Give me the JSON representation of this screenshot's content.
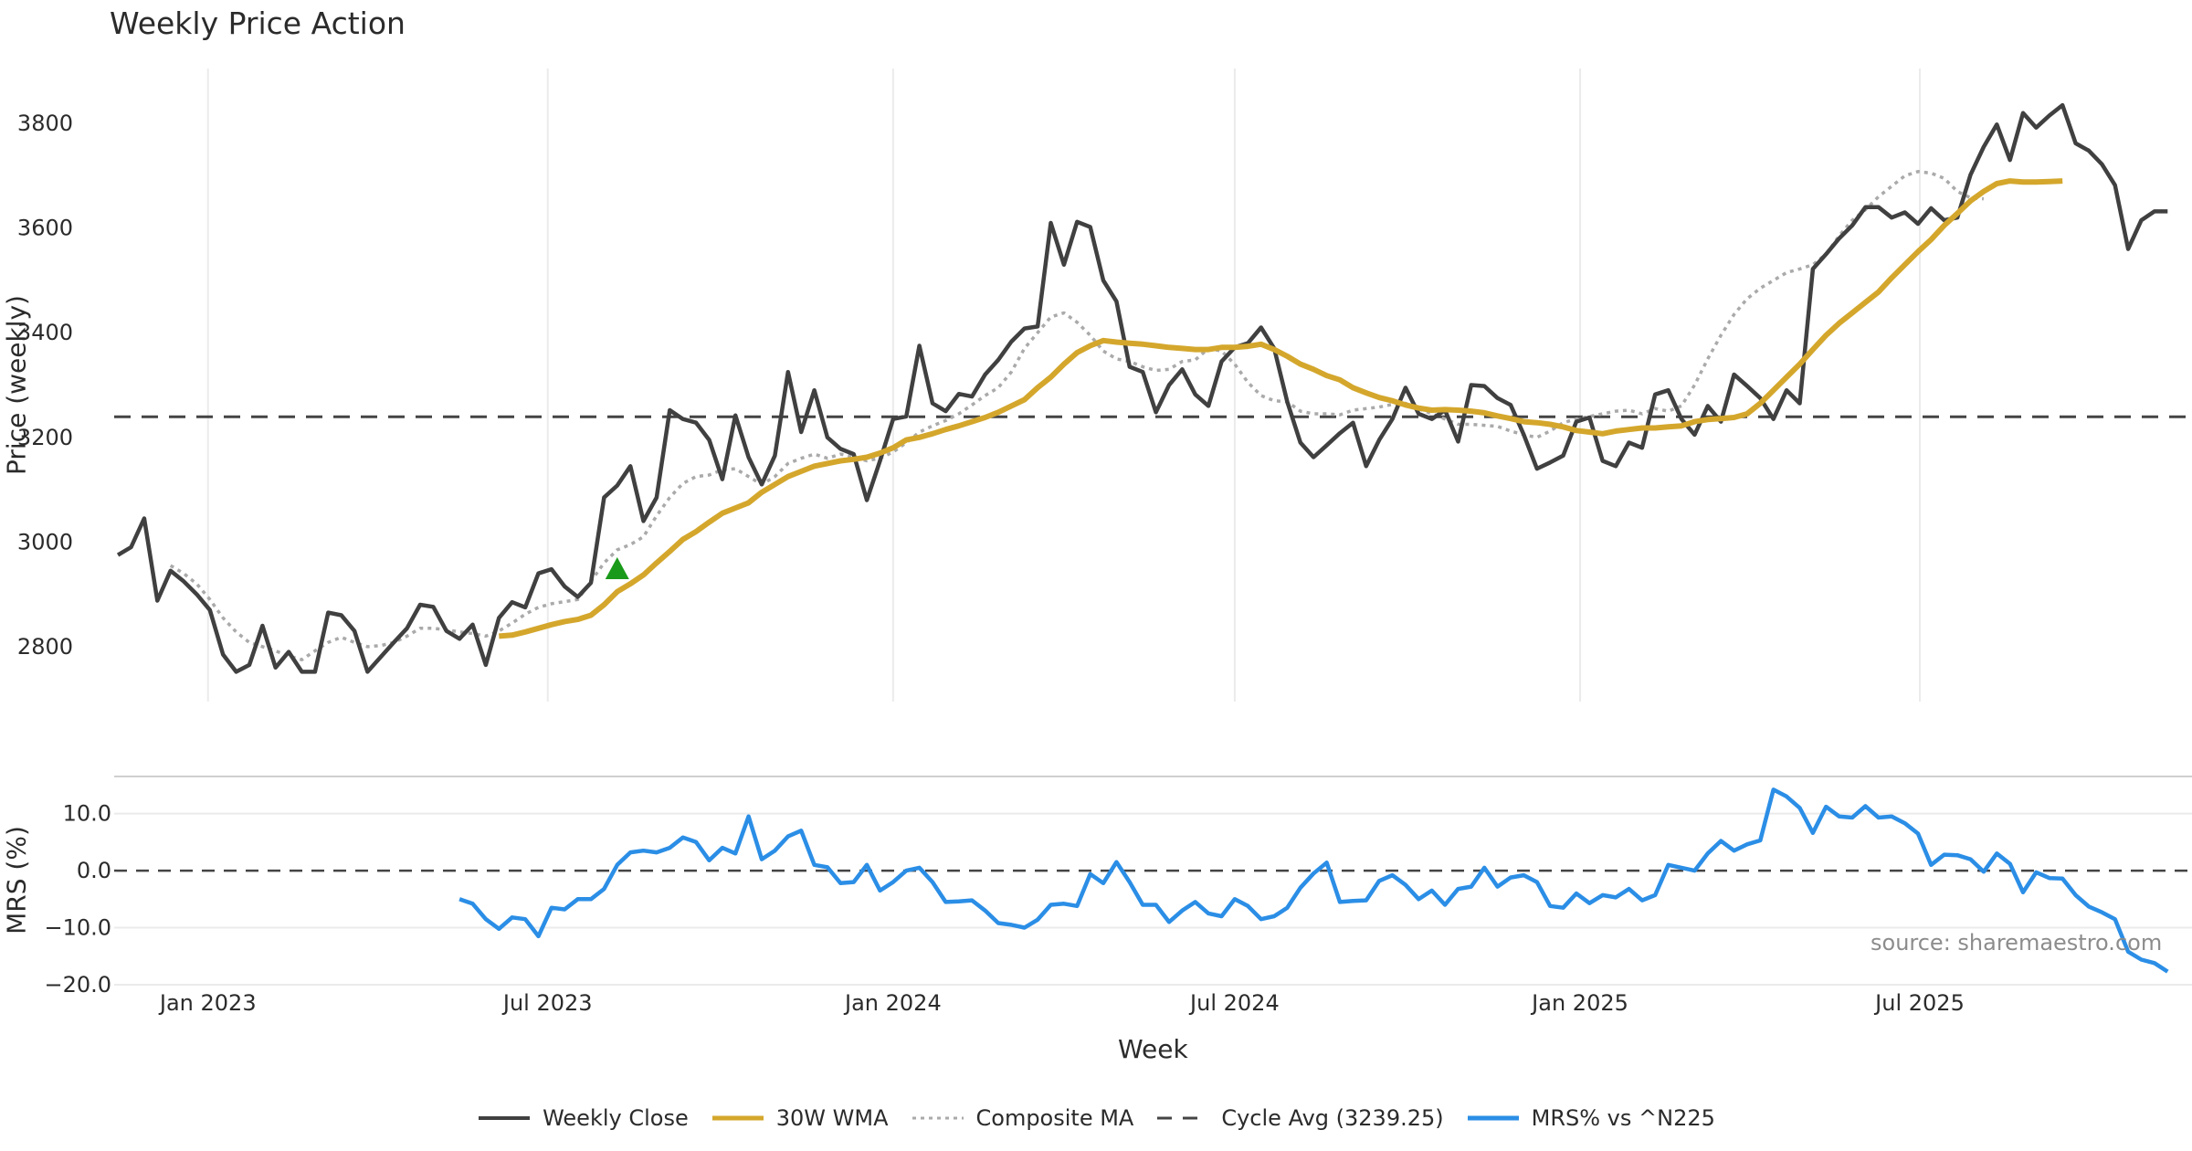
{
  "title": "Weekly Price Action",
  "source": "source: sharemaestro.com",
  "colors": {
    "close": "#404040",
    "wma": "#d4a72c",
    "composite": "#aaaaaa",
    "cycle": "#444444",
    "mrs": "#2b8ee6",
    "buy": "#1a9a1a",
    "grid": "#ebebeb"
  },
  "chart_data": [
    {
      "type": "line",
      "title": "Weekly Price Action",
      "xlabel": "",
      "ylabel": "Price (weekly)",
      "x_start": "2022-11-14",
      "x_step_days": 7,
      "xlim": [
        "2022-11-12",
        "2025-11-23"
      ],
      "ylim": [
        2695,
        3905
      ],
      "yticks": [
        2800,
        3000,
        3200,
        3400,
        3600,
        3800
      ],
      "xticks": [
        {
          "date": "2023-01-01",
          "label": "Jan 2023"
        },
        {
          "date": "2023-07-01",
          "label": "Jul 2023"
        },
        {
          "date": "2024-01-01",
          "label": "Jan 2024"
        },
        {
          "date": "2024-07-01",
          "label": "Jul 2024"
        },
        {
          "date": "2025-01-01",
          "label": "Jan 2025"
        },
        {
          "date": "2025-07-01",
          "label": "Jul 2025"
        }
      ],
      "cycle_avg": 3239.25,
      "buy_signal": {
        "index": 38,
        "value": 2950
      },
      "series": [
        {
          "name": "Weekly Close",
          "values": [
            2975,
            2990,
            3045,
            2888,
            2945,
            2925,
            2900,
            2870,
            2785,
            2752,
            2765,
            2840,
            2760,
            2790,
            2752,
            2752,
            2865,
            2860,
            2830,
            2752,
            2780,
            2808,
            2835,
            2880,
            2876,
            2830,
            2815,
            2842,
            2765,
            2855,
            2885,
            2875,
            2940,
            2948,
            2915,
            2895,
            2922,
            3085,
            3108,
            3145,
            3040,
            3085,
            3252,
            3235,
            3228,
            3195,
            3120,
            3242,
            3162,
            3110,
            3165,
            3325,
            3210,
            3290,
            3200,
            3178,
            3168,
            3080,
            3155,
            3235,
            3240,
            3375,
            3265,
            3250,
            3283,
            3278,
            3320,
            3348,
            3383,
            3408,
            3412,
            3610,
            3530,
            3612,
            3602,
            3500,
            3460,
            3335,
            3325,
            3248,
            3300,
            3330,
            3282,
            3260,
            3345,
            3372,
            3380,
            3410,
            3370,
            3268,
            3190,
            3162,
            3185,
            3208,
            3228,
            3145,
            3195,
            3235,
            3295,
            3245,
            3235,
            3252,
            3192,
            3300,
            3298,
            3275,
            3262,
            3205,
            3140,
            3152,
            3165,
            3230,
            3238,
            3155,
            3145,
            3190,
            3180,
            3282,
            3290,
            3235,
            3205,
            3260,
            3230,
            3320,
            3298,
            3275,
            3235,
            3290,
            3265,
            3522,
            3550,
            3580,
            3605,
            3640,
            3640,
            3620,
            3630,
            3608,
            3638,
            3615,
            3620,
            3702,
            3755,
            3798,
            3730,
            3820,
            3792,
            3815,
            3835,
            3762,
            3748,
            3722,
            3682,
            3560,
            3615,
            3632,
            3632
          ]
        },
        {
          "name": "30W WMA",
          "start_index": 29,
          "values": [
            2820,
            2822,
            2828,
            2835,
            2842,
            2848,
            2852,
            2860,
            2880,
            2905,
            2920,
            2937,
            2960,
            2982,
            3005,
            3020,
            3038,
            3055,
            3065,
            3075,
            3095,
            3110,
            3125,
            3135,
            3145,
            3150,
            3155,
            3158,
            3162,
            3170,
            3180,
            3195,
            3200,
            3207,
            3215,
            3222,
            3230,
            3238,
            3248,
            3260,
            3272,
            3295,
            3315,
            3340,
            3362,
            3375,
            3385,
            3382,
            3380,
            3378,
            3375,
            3372,
            3370,
            3368,
            3368,
            3372,
            3372,
            3374,
            3378,
            3368,
            3355,
            3340,
            3330,
            3318,
            3310,
            3295,
            3285,
            3276,
            3270,
            3262,
            3256,
            3252,
            3253,
            3252,
            3250,
            3247,
            3241,
            3236,
            3230,
            3228,
            3225,
            3220,
            3213,
            3210,
            3207,
            3212,
            3215,
            3218,
            3218,
            3220,
            3222,
            3230,
            3234,
            3236,
            3238,
            3245,
            3265,
            3290,
            3315,
            3340,
            3368,
            3395,
            3418,
            3438,
            3458,
            3478,
            3505,
            3530,
            3555,
            3578,
            3605,
            3628,
            3652,
            3670,
            3685,
            3690,
            3688,
            3688,
            3689,
            3690
          ]
        },
        {
          "name": "Composite MA",
          "start_index": 4,
          "values": [
            2955,
            2940,
            2920,
            2890,
            2855,
            2828,
            2808,
            2800,
            2792,
            2782,
            2775,
            2792,
            2808,
            2818,
            2808,
            2800,
            2802,
            2808,
            2820,
            2835,
            2835,
            2832,
            2828,
            2825,
            2820,
            2830,
            2845,
            2862,
            2875,
            2882,
            2886,
            2890,
            2925,
            2960,
            2985,
            2995,
            3010,
            3050,
            3085,
            3112,
            3125,
            3128,
            3138,
            3140,
            3125,
            3110,
            3125,
            3150,
            3160,
            3168,
            3160,
            3168,
            3163,
            3155,
            3160,
            3172,
            3190,
            3210,
            3222,
            3232,
            3245,
            3262,
            3280,
            3295,
            3325,
            3370,
            3400,
            3430,
            3438,
            3420,
            3395,
            3365,
            3350,
            3345,
            3335,
            3328,
            3330,
            3345,
            3348,
            3370,
            3365,
            3340,
            3305,
            3280,
            3270,
            3268,
            3250,
            3245,
            3245,
            3243,
            3252,
            3255,
            3258,
            3263,
            3265,
            3255,
            3245,
            3235,
            3225,
            3225,
            3223,
            3221,
            3212,
            3205,
            3200,
            3212,
            3228,
            3235,
            3240,
            3245,
            3250,
            3252,
            3245,
            3255,
            3250,
            3260,
            3300,
            3350,
            3395,
            3435,
            3465,
            3485,
            3500,
            3515,
            3522,
            3530,
            3550,
            3585,
            3615,
            3635,
            3660,
            3680,
            3700,
            3708,
            3705,
            3695,
            3670,
            3658,
            3656
          ]
        },
        {
          "name": "Cycle Avg (3239.25)",
          "constant": 3239.25
        }
      ]
    },
    {
      "type": "line",
      "title": "",
      "xlabel": "Week",
      "ylabel": "MRS (%)",
      "ylim": [
        -20,
        16.5
      ],
      "yticks": [
        -20,
        -10,
        0,
        10
      ],
      "ytick_labels": [
        "−20.0",
        "−10.0",
        "0.0",
        "10.0"
      ],
      "series": [
        {
          "name": "MRS% vs ^N225",
          "start_index": 26,
          "values": [
            -5.0,
            -5.8,
            -8.5,
            -10.2,
            -8.2,
            -8.5,
            -11.5,
            -6.5,
            -6.8,
            -5.0,
            -5.0,
            -3.2,
            1.0,
            3.2,
            3.5,
            3.2,
            4.0,
            5.8,
            5.0,
            1.8,
            4.0,
            3.0,
            9.5,
            2.0,
            3.5,
            6.0,
            7.0,
            1.0,
            0.6,
            -2.2,
            -2.0,
            1.0,
            -3.5,
            -2.0,
            0.0,
            0.5,
            -2.0,
            -5.5,
            -5.4,
            -5.2,
            -7.0,
            -9.2,
            -9.5,
            -10.0,
            -8.6,
            -6.0,
            -5.8,
            -6.2,
            -0.6,
            -2.2,
            1.5,
            -2.0,
            -6.0,
            -6.0,
            -9.0,
            -7.0,
            -5.5,
            -7.5,
            -8.0,
            -5.0,
            -6.2,
            -8.5,
            -8.0,
            -6.5,
            -3.0,
            -0.5,
            1.4,
            -5.5,
            -5.3,
            -5.2,
            -1.8,
            -0.8,
            -2.5,
            -5.0,
            -3.5,
            -6.0,
            -3.2,
            -2.8,
            0.5,
            -2.8,
            -1.2,
            -0.8,
            -2.0,
            -6.2,
            -6.5,
            -4.0,
            -5.7,
            -4.3,
            -4.7,
            -3.2,
            -5.2,
            -4.3,
            1.0,
            0.5,
            0.0,
            3.0,
            5.2,
            3.5,
            4.6,
            5.3,
            14.2,
            13.0,
            11.0,
            6.6,
            11.2,
            9.5,
            9.3,
            11.3,
            9.3,
            9.5,
            8.3,
            6.5,
            1.0,
            2.8,
            2.7,
            2.0,
            -0.2,
            3.0,
            1.2,
            -3.8,
            -0.3,
            -1.3,
            -1.4,
            -4.3,
            -6.3,
            -7.3,
            -8.5,
            -14.2,
            -15.6,
            -16.2,
            -17.7
          ]
        }
      ]
    }
  ],
  "legend": [
    {
      "key": "close",
      "label": "Weekly Close",
      "style": "solid"
    },
    {
      "key": "wma",
      "label": "30W WMA",
      "style": "solid"
    },
    {
      "key": "composite",
      "label": "Composite MA",
      "style": "dotted"
    },
    {
      "key": "cycle",
      "label": "Cycle Avg (3239.25)",
      "style": "dashed"
    },
    {
      "key": "mrs",
      "label": "MRS% vs ^N225",
      "style": "solid"
    }
  ]
}
